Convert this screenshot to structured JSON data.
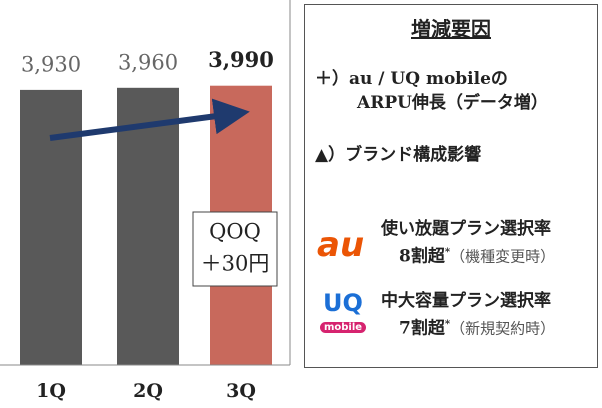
{
  "chart_data": {
    "type": "bar",
    "categories": [
      "1Q",
      "2Q",
      "3Q"
    ],
    "values": [
      3930,
      3960,
      3990
    ],
    "value_labels": [
      "3,930",
      "3,960",
      "3,990"
    ],
    "colors": [
      "#595959",
      "#595959",
      "#c8695c"
    ],
    "ylim": [
      0,
      4300
    ],
    "annotation": [
      "QOQ",
      "＋30円"
    ]
  },
  "panel": {
    "title": "増減要因",
    "items": [
      {
        "lines": [
          "＋）au / UQ mobileの",
          "ARPU伸長（データ増）"
        ]
      },
      {
        "lines": [
          "▲）ブランド構成影響"
        ]
      },
      {
        "logo": "au",
        "lines": [
          "使い放題プラン選択率"
        ],
        "rate": "8割超",
        "mark": "*",
        "note": "（機種変更時）"
      },
      {
        "logo": [
          "UQ",
          "mobile"
        ],
        "lines": [
          "中大容量プラン選択率"
        ],
        "rate": "7割超",
        "mark": "*",
        "note": "（新規契約時）"
      }
    ]
  }
}
